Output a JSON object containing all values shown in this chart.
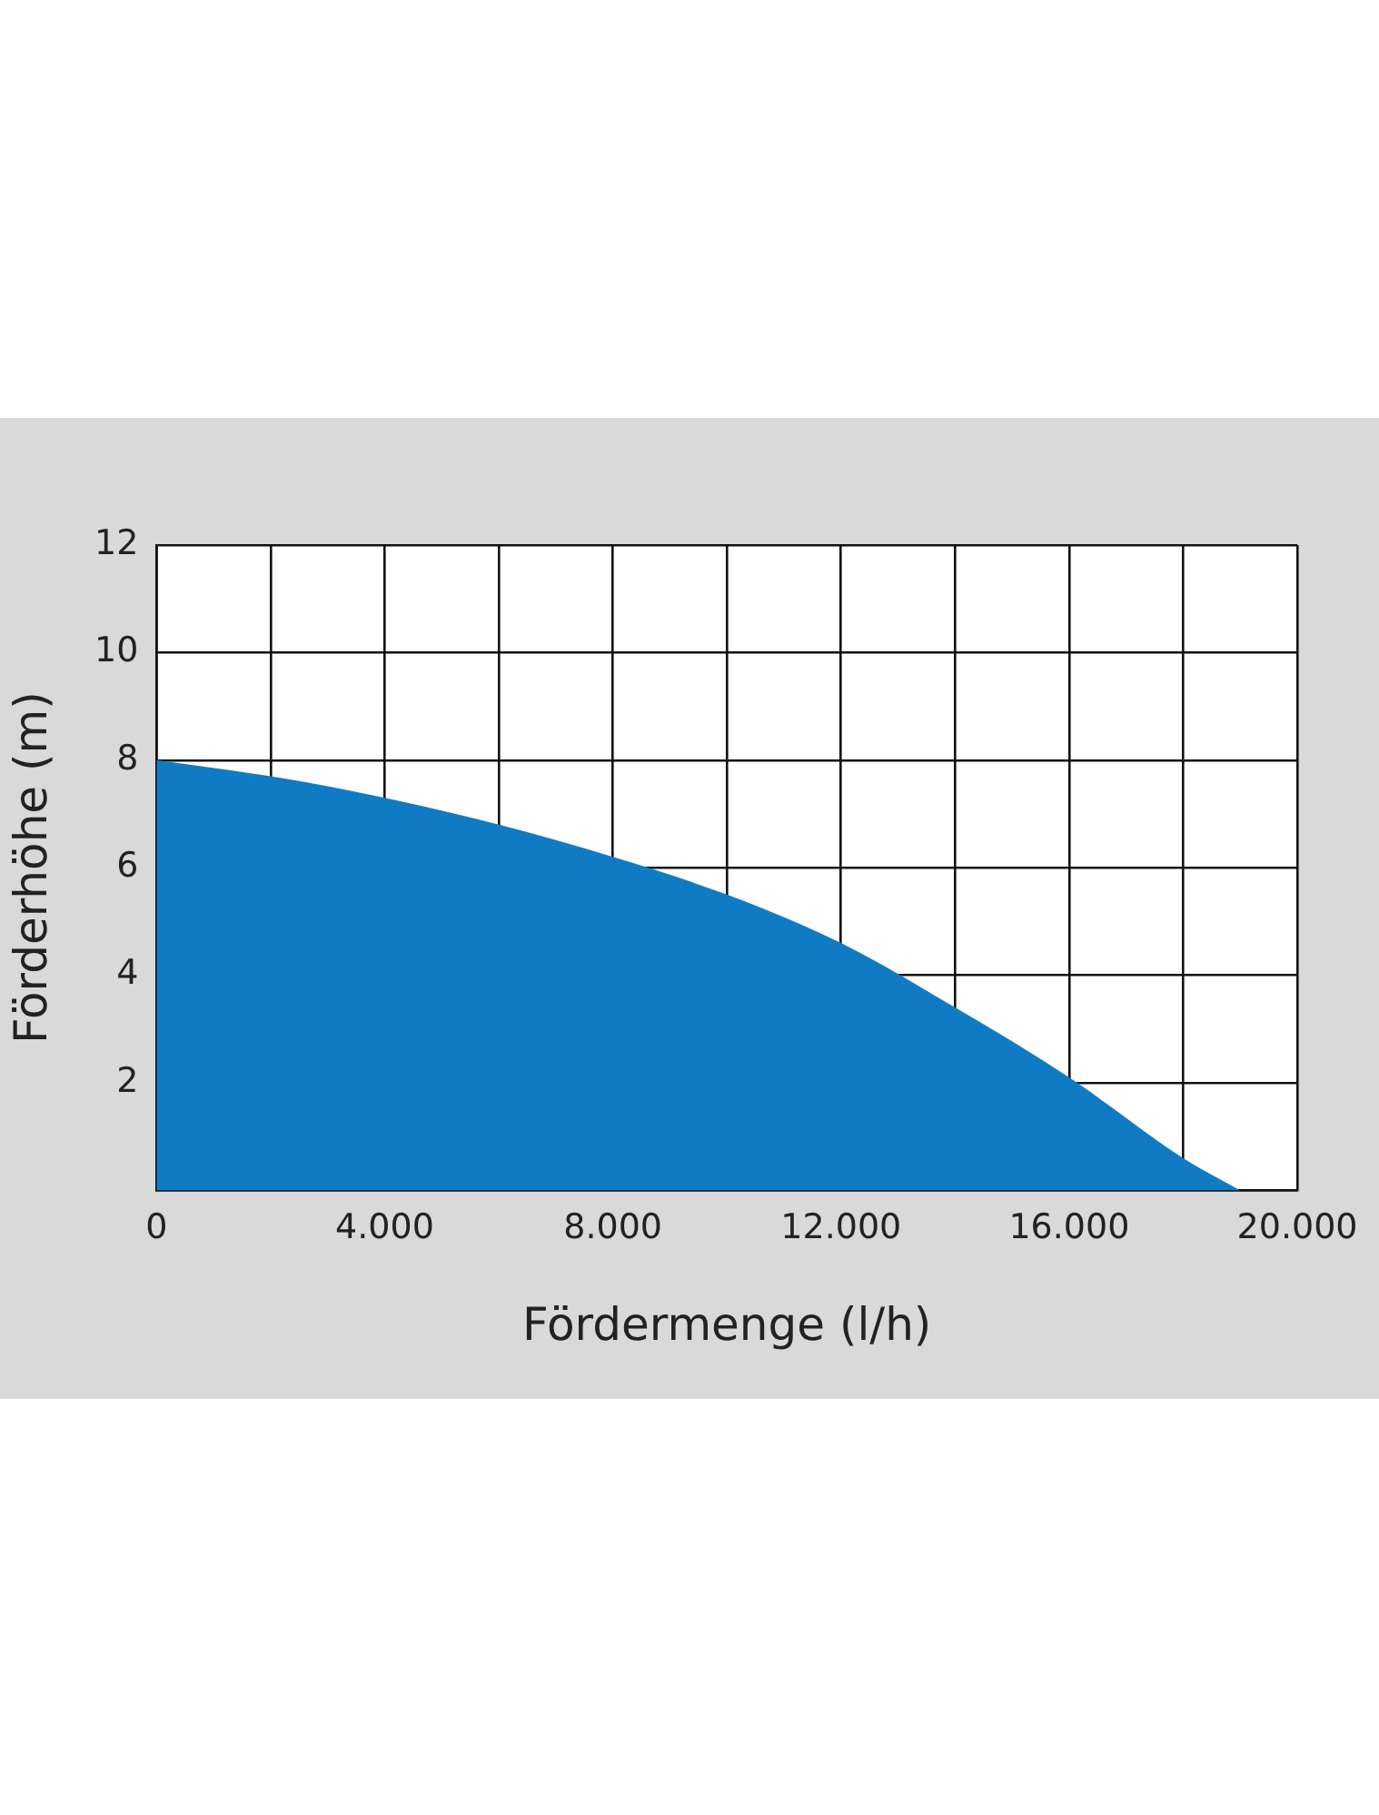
{
  "chart_data": {
    "type": "area",
    "xlabel": "Fördermenge (l/h)",
    "ylabel": "Förderhöhe (m)",
    "x": [
      0,
      2000,
      4000,
      6000,
      8000,
      10000,
      12000,
      14000,
      16000,
      18000,
      19000
    ],
    "series": [
      {
        "color": "#0f7bc4",
        "values": [
          8.0,
          7.7,
          7.3,
          6.8,
          6.2,
          5.5,
          4.6,
          3.4,
          2.1,
          0.6,
          0
        ]
      }
    ],
    "xlim": [
      0,
      20000
    ],
    "xticks": [
      0,
      {
        "value": 2000,
        "label": null
      },
      {
        "value": 4000,
        "label": "4.000"
      },
      {
        "value": 6000,
        "label": null
      },
      {
        "value": 8000,
        "label": "8.000"
      },
      {
        "value": 10000,
        "label": null
      },
      {
        "value": 12000,
        "label": "12.000"
      },
      {
        "value": 14000,
        "label": null
      },
      {
        "value": 16000,
        "label": "16.000"
      },
      {
        "value": 18000,
        "label": null
      },
      {
        "value": 20000,
        "label": "20.000"
      }
    ],
    "ylim": [
      0,
      12
    ],
    "yticks": [
      {
        "value": 0,
        "label": null
      },
      2,
      4,
      6,
      8,
      10,
      12
    ],
    "grid": true,
    "legend": false,
    "marker": "none"
  }
}
